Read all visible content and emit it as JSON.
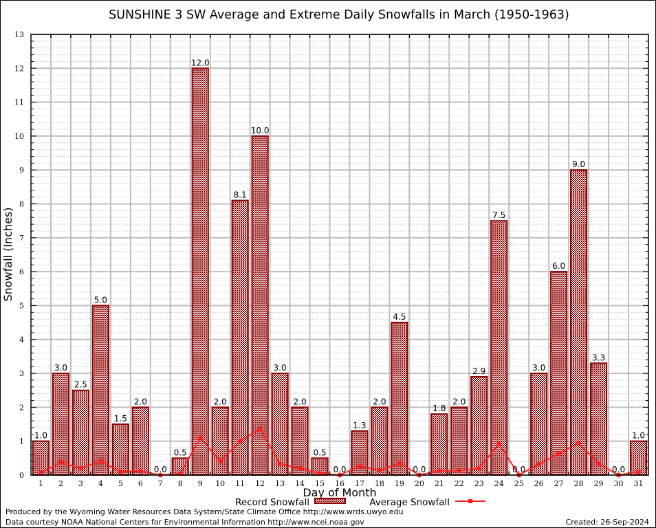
{
  "chart_data": {
    "type": "bar",
    "title": "SUNSHINE 3 SW Average and Extreme Daily Snowfalls in March (1950-1963)",
    "xlabel": "Day of Month",
    "ylabel": "Snowfall (Inches)",
    "ylim": [
      0,
      13
    ],
    "yticks": [
      0,
      1,
      2,
      3,
      4,
      5,
      6,
      7,
      8,
      9,
      10,
      11,
      12,
      13
    ],
    "grid": true,
    "legend_position": "bottom-center",
    "categories": [
      "1",
      "2",
      "3",
      "4",
      "5",
      "6",
      "7",
      "8",
      "9",
      "10",
      "11",
      "12",
      "13",
      "14",
      "15",
      "16",
      "17",
      "18",
      "19",
      "20",
      "21",
      "22",
      "23",
      "24",
      "25",
      "26",
      "27",
      "28",
      "29",
      "30",
      "31"
    ],
    "series": [
      {
        "name": "Record Snowfall",
        "type": "bar",
        "color": "#8b0000",
        "values": [
          1.0,
          3.0,
          2.5,
          5.0,
          1.5,
          2.0,
          0.0,
          0.5,
          12.0,
          2.0,
          8.1,
          10.0,
          3.0,
          2.0,
          0.5,
          0.0,
          1.3,
          2.0,
          4.5,
          0.0,
          1.8,
          2.0,
          2.9,
          7.5,
          0.0,
          3.0,
          6.0,
          9.0,
          3.3,
          0.0,
          1.0
        ],
        "labels": [
          "1.0",
          "3.0",
          "2.5",
          "5.0",
          "1.5",
          "2.0",
          "0.0",
          "0.5",
          "12.0",
          "2.0",
          "8.1",
          "10.0",
          "3.0",
          "2.0",
          "0.5",
          "0.0",
          "1.3",
          "2.0",
          "4.5",
          "0.0",
          "1.8",
          "2.0",
          "2.9",
          "7.5",
          "0.0",
          "3.0",
          "6.0",
          "9.0",
          "3.3",
          "0.0",
          "1.0"
        ]
      },
      {
        "name": "Average Snowfall",
        "type": "line",
        "color": "#ff2020",
        "values": [
          0.07,
          0.37,
          0.2,
          0.41,
          0.1,
          0.12,
          0.0,
          0.04,
          1.1,
          0.41,
          1.0,
          1.36,
          0.33,
          0.2,
          0.05,
          0.0,
          0.26,
          0.14,
          0.35,
          0.0,
          0.13,
          0.13,
          0.2,
          0.92,
          0.0,
          0.32,
          0.63,
          0.95,
          0.33,
          0.0,
          0.1
        ]
      }
    ]
  },
  "footer": {
    "produced_by": "Produced by the Wyoming Water Resources Data System/State Climate Office http://www.wrds.uwyo.edu",
    "data_courtesy": "Data courtesy NOAA National Centers for Environmental Information http://www.ncei.noaa.gov",
    "created": "Created:  26-Sep-2024"
  }
}
